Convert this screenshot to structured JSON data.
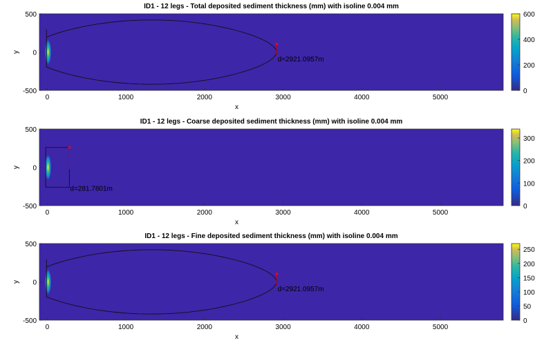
{
  "chart_data": [
    {
      "type": "heatmap",
      "title": "ID1 - 12 legs - Total deposited sediment thickness (mm) with isoline 0.004 mm",
      "xlabel": "x",
      "ylabel": "y",
      "xlim": [
        -100,
        5800
      ],
      "ylim": [
        -500,
        500
      ],
      "xticks": [
        "0",
        "1000",
        "2000",
        "3000",
        "4000",
        "5000"
      ],
      "yticks": [
        "500",
        "0",
        "-500"
      ],
      "colorbar": {
        "min": 0,
        "max": 600,
        "ticks": [
          "600",
          "400",
          "200",
          "0"
        ]
      },
      "isoline_extent_x": 2921.0957,
      "isoline_half_width_y": 420,
      "annotation": "d=2921.0957m"
    },
    {
      "type": "heatmap",
      "title": "ID1 - 12 legs - Coarse deposited sediment thickness (mm) with isoline 0.004 mm",
      "xlabel": "x",
      "ylabel": "y",
      "xlim": [
        -100,
        5800
      ],
      "ylim": [
        -500,
        500
      ],
      "xticks": [
        "0",
        "1000",
        "2000",
        "3000",
        "4000",
        "5000"
      ],
      "yticks": [
        "500",
        "0",
        "-500"
      ],
      "colorbar": {
        "min": 0,
        "max": 340,
        "ticks": [
          "300",
          "200",
          "100",
          "0"
        ]
      },
      "isoline_extent_x": 281.7801,
      "isoline_half_width_y": 260,
      "annotation": "d=281.7801m"
    },
    {
      "type": "heatmap",
      "title": "ID1 - 12 legs - Fine deposited sediment thickness (mm) with isoline 0.004 mm",
      "xlabel": "x",
      "ylabel": "y",
      "xlim": [
        -100,
        5800
      ],
      "ylim": [
        -500,
        500
      ],
      "xticks": [
        "0",
        "1000",
        "2000",
        "3000",
        "4000",
        "5000"
      ],
      "yticks": [
        "500",
        "0",
        "-500"
      ],
      "colorbar": {
        "min": 0,
        "max": 270,
        "ticks": [
          "250",
          "200",
          "150",
          "100",
          "50",
          "0"
        ]
      },
      "isoline_extent_x": 2921.0957,
      "isoline_half_width_y": 420,
      "annotation": "d=2921.0957m"
    }
  ]
}
